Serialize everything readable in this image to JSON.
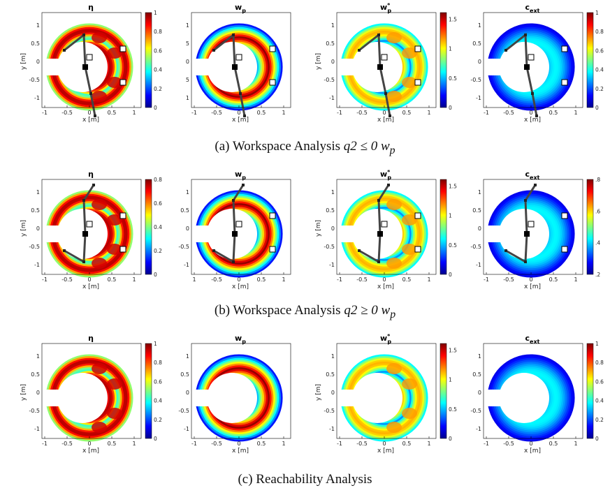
{
  "figure": {
    "captions": [
      {
        "prefix": "(a) Workspace Analysis ",
        "math": "q2 ≤ 0 w",
        "sub": "p"
      },
      {
        "prefix": "(b) Workspace Analysis ",
        "math": "q2 ≥ 0 w",
        "sub": "p"
      },
      {
        "prefix": "(c) Reachability Analysis",
        "math": "",
        "sub": ""
      }
    ],
    "rows": [
      {
        "id": "a",
        "arm": "down",
        "panels": [
          {
            "title": "η",
            "title_sub": "",
            "title_sup": "",
            "colorbar_ticks": [
              "0",
              "0.2",
              "0.4",
              "0.6",
              "0.8",
              "1"
            ],
            "cmax": 1,
            "mode": "eta"
          },
          {
            "title": "w",
            "title_sub": "p",
            "title_sup": "",
            "colorbar_ticks": [],
            "cmax": 1,
            "mode": "wp"
          },
          {
            "title": "w",
            "title_sub": "p",
            "title_sup": "*",
            "colorbar_ticks": [
              "0",
              "0.5",
              "1",
              "1.5"
            ],
            "cmax": 1.6,
            "mode": "wps"
          },
          {
            "title": "c",
            "title_sub": "ext",
            "title_sup": "",
            "colorbar_ticks": [
              "0",
              "0.2",
              "0.4",
              "0.6",
              "0.8",
              "1"
            ],
            "cmax": 1,
            "mode": "cext"
          }
        ],
        "xticks": [
          "-1",
          "-0.5",
          "0",
          "0.5",
          "1"
        ],
        "yticks": [
          "-1",
          "-0.5",
          "0",
          "0.5",
          "1"
        ],
        "wp_yticks": [
          "1",
          "5",
          "0",
          "5",
          "1"
        ],
        "xlabel": "x [m]",
        "ylabel": "y [m]"
      },
      {
        "id": "b",
        "arm": "up",
        "panels": [
          {
            "title": "η",
            "title_sub": "",
            "title_sup": "",
            "colorbar_ticks": [
              "0",
              "0.2",
              "0.4",
              "0.6",
              "0.8"
            ],
            "cmax": 1,
            "mode": "eta"
          },
          {
            "title": "w",
            "title_sub": "p",
            "title_sup": "",
            "colorbar_ticks": [],
            "cmax": 1,
            "mode": "wp"
          },
          {
            "title": "w",
            "title_sub": "p",
            "title_sup": "*",
            "colorbar_ticks": [
              "0",
              "0.5",
              "1",
              "1.5"
            ],
            "cmax": 1.6,
            "mode": "wps"
          },
          {
            "title": "c",
            "title_sub": "ext",
            "title_sup": "",
            "colorbar_ticks": [
              ".2",
              ".4",
              ".6",
              ".8"
            ],
            "cmax": 1,
            "mode": "cext"
          }
        ],
        "xticks": [
          "-1",
          "-0.5",
          "0",
          "0.5",
          "1"
        ],
        "wp_xticks": [
          "1",
          "-0.5",
          "0",
          "0.5",
          "1"
        ],
        "yticks": [
          "-1",
          "-0.5",
          "0",
          "0.5",
          "1"
        ],
        "xlabel": "x [m]",
        "ylabel": "y [m]"
      },
      {
        "id": "c",
        "arm": "none",
        "panels": [
          {
            "title": "η",
            "title_sub": "",
            "title_sup": "",
            "colorbar_ticks": [
              "0",
              "0.2",
              "0.4",
              "0.6",
              "0.8",
              "1"
            ],
            "cmax": 1,
            "mode": "eta"
          },
          {
            "title": "w",
            "title_sub": "p",
            "title_sup": "",
            "colorbar_ticks": [],
            "cmax": 1,
            "mode": "wp"
          },
          {
            "title": "w",
            "title_sub": "p",
            "title_sup": "*",
            "colorbar_ticks": [
              "0",
              "0.5",
              "1",
              "1.5"
            ],
            "cmax": 1.6,
            "mode": "wps"
          },
          {
            "title": "c",
            "title_sub": "ext",
            "title_sup": "",
            "colorbar_ticks": [
              "0",
              "0.2",
              "0.4",
              "0.6",
              "0.8",
              "1"
            ],
            "cmax": 1,
            "mode": "cext"
          }
        ],
        "xticks": [
          "-1",
          "-0.5",
          "0",
          "0.5",
          "1"
        ],
        "yticks": [
          "-1",
          "-0.5",
          "0",
          "0.5",
          "1"
        ],
        "xlabel": "x [m]",
        "ylabel": "y [m]"
      }
    ]
  }
}
